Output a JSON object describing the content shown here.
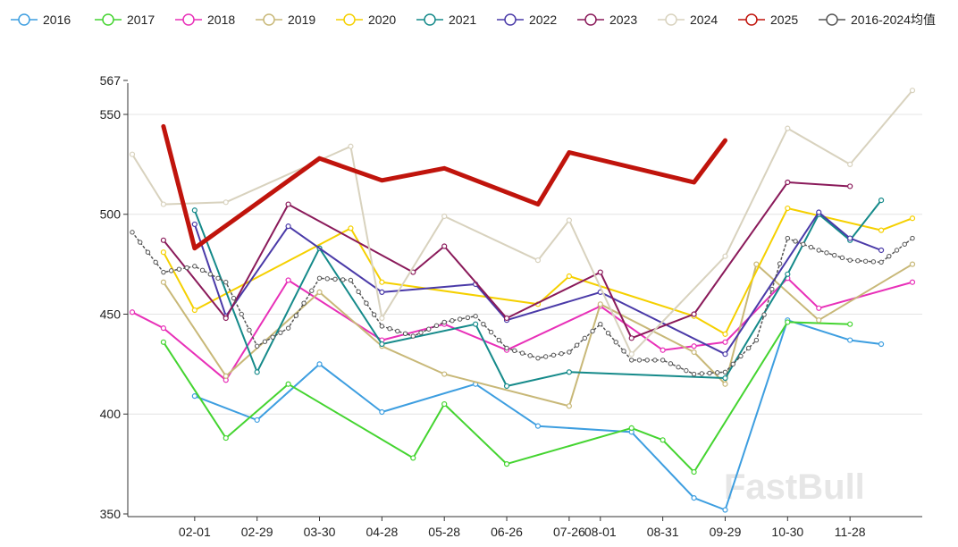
{
  "chart_data": {
    "type": "line",
    "x": [
      "01-02",
      "01-16",
      "02-01",
      "02-15",
      "02-29",
      "03-15",
      "03-30",
      "04-13",
      "04-28",
      "05-13",
      "05-28",
      "06-11",
      "06-26",
      "07-11",
      "07-26",
      "08-01",
      "08-15",
      "08-31",
      "09-14",
      "09-29",
      "10-15",
      "10-30",
      "11-14",
      "11-28",
      "12-13",
      "12-27"
    ],
    "x_tick_labels": [
      "02-01",
      "02-29",
      "03-30",
      "04-28",
      "05-28",
      "06-26",
      "07-26",
      "08-01",
      "08-31",
      "09-29",
      "10-30",
      "11-28"
    ],
    "y_tick_labels": [
      "350",
      "400",
      "450",
      "500",
      "550",
      "567"
    ],
    "ylim": [
      350,
      567
    ],
    "grid": "horizontal",
    "legend_position": "top",
    "watermark": "FastBull",
    "series": [
      {
        "name": "2016",
        "color": "#3d9ee0",
        "width": 2,
        "dotted": false,
        "values": [
          null,
          null,
          409,
          null,
          397,
          null,
          425,
          null,
          401,
          null,
          null,
          415,
          null,
          394,
          null,
          null,
          391,
          null,
          358,
          352,
          null,
          447,
          null,
          437,
          435,
          null
        ]
      },
      {
        "name": "2017",
        "color": "#44d430",
        "width": 2,
        "dotted": false,
        "values": [
          null,
          436,
          null,
          388,
          null,
          415,
          null,
          null,
          null,
          378,
          405,
          null,
          375,
          null,
          null,
          null,
          393,
          387,
          371,
          null,
          null,
          446,
          null,
          445,
          null,
          null
        ]
      },
      {
        "name": "2018",
        "color": "#e830b8",
        "width": 2,
        "dotted": false,
        "values": [
          451,
          443,
          null,
          417,
          null,
          467,
          null,
          null,
          437,
          null,
          445,
          null,
          432,
          null,
          null,
          454,
          null,
          432,
          434,
          436,
          null,
          468,
          453,
          null,
          null,
          466
        ]
      },
      {
        "name": "2019",
        "color": "#c8b878",
        "width": 2,
        "dotted": false,
        "values": [
          null,
          466,
          null,
          419,
          null,
          null,
          461,
          null,
          434,
          null,
          420,
          null,
          null,
          null,
          404,
          455,
          null,
          null,
          431,
          415,
          475,
          null,
          447,
          null,
          null,
          475
        ]
      },
      {
        "name": "2020",
        "color": "#f5d000",
        "width": 2,
        "dotted": false,
        "values": [
          null,
          481,
          452,
          null,
          null,
          null,
          null,
          493,
          466,
          null,
          null,
          null,
          null,
          455,
          469,
          null,
          null,
          null,
          449,
          440,
          null,
          503,
          null,
          null,
          492,
          498
        ]
      },
      {
        "name": "2021",
        "color": "#158a8a",
        "width": 2,
        "dotted": false,
        "values": [
          null,
          null,
          502,
          null,
          421,
          null,
          483,
          null,
          435,
          null,
          null,
          445,
          414,
          null,
          421,
          null,
          null,
          null,
          null,
          418,
          null,
          470,
          500,
          487,
          507,
          null
        ]
      },
      {
        "name": "2022",
        "color": "#4a3aa8",
        "width": 2,
        "dotted": false,
        "values": [
          null,
          null,
          495,
          449,
          null,
          494,
          null,
          null,
          461,
          null,
          null,
          465,
          447,
          null,
          null,
          461,
          null,
          null,
          null,
          430,
          null,
          null,
          501,
          488,
          482,
          null
        ]
      },
      {
        "name": "2023",
        "color": "#8a1a5a",
        "width": 2,
        "dotted": false,
        "values": [
          null,
          487,
          null,
          448,
          null,
          505,
          null,
          null,
          null,
          471,
          484,
          null,
          448,
          null,
          null,
          471,
          438,
          null,
          450,
          null,
          null,
          516,
          null,
          514,
          null,
          null
        ]
      },
      {
        "name": "2024",
        "color": "#d8d2be",
        "width": 2,
        "dotted": false,
        "values": [
          530,
          505,
          null,
          506,
          null,
          null,
          null,
          534,
          448,
          null,
          499,
          null,
          null,
          477,
          497,
          null,
          430,
          null,
          null,
          479,
          null,
          543,
          null,
          525,
          null,
          562
        ]
      },
      {
        "name": "2025",
        "color": "#c0140c",
        "width": 5,
        "dotted": false,
        "values": [
          null,
          544,
          483,
          null,
          null,
          null,
          528,
          null,
          517,
          null,
          523,
          null,
          null,
          505,
          531,
          null,
          null,
          null,
          516,
          537,
          null,
          null,
          null,
          null,
          null,
          null
        ]
      },
      {
        "name": "2016-2024均值",
        "color": "#555555",
        "width": 1.5,
        "dotted": true,
        "values": [
          491,
          471,
          474,
          466,
          434,
          443,
          468,
          467,
          444,
          439,
          446,
          449,
          433,
          428,
          431,
          445,
          427,
          427,
          420,
          421,
          437,
          488,
          482,
          477,
          476,
          488
        ]
      }
    ]
  }
}
